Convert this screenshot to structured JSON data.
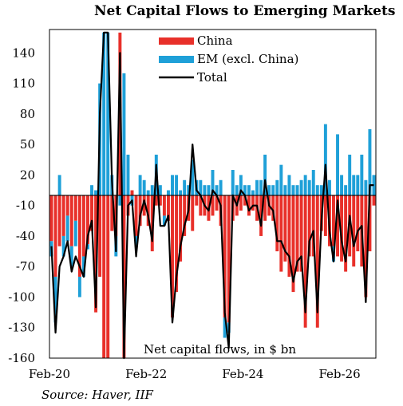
{
  "chart_data": {
    "type": "bar",
    "title": "Net Capital Flows to Emerging Markets",
    "ylabel": "",
    "xlabel": "",
    "annotation": "Net capital flows, in $ bn",
    "source": "Source: Haver, IIF",
    "ylim": [
      -160,
      163
    ],
    "y_ticks": [
      140,
      110,
      80,
      50,
      20,
      -10,
      -40,
      -70,
      -100,
      -130,
      -160
    ],
    "x_ticks": [
      "Feb-20",
      "Feb-22",
      "Feb-24",
      "Feb-26"
    ],
    "legend_position": "top-right",
    "grid": false,
    "stacked": true,
    "series": [
      {
        "name": "China",
        "color": "#e8302a",
        "values": [
          -45,
          -80,
          -50,
          -40,
          -20,
          -50,
          -25,
          -80,
          -60,
          -48,
          -35,
          -115,
          -80,
          -160,
          -160,
          -35,
          -40,
          160,
          -160,
          -20,
          5,
          -40,
          -30,
          -20,
          -30,
          -55,
          -10,
          -10,
          -20,
          -25,
          -120,
          -95,
          -65,
          -40,
          -25,
          -35,
          -10,
          -20,
          -20,
          -25,
          -20,
          -15,
          -30,
          -120,
          -125,
          -25,
          -20,
          -15,
          -10,
          -20,
          -15,
          -25,
          -40,
          -25,
          -20,
          -25,
          -55,
          -75,
          -65,
          -80,
          -95,
          -75,
          -75,
          -130,
          -60,
          -60,
          -130,
          -35,
          -40,
          -50,
          -50,
          -60,
          -65,
          -75,
          -60,
          -70,
          -55,
          -70,
          -100,
          -55,
          -10
        ]
      },
      {
        "name": "EM (excl. China)",
        "color": "#1fa0d8",
        "values": [
          -15,
          -45,
          20,
          -20,
          -25,
          -20,
          -25,
          -20,
          -20,
          -5,
          10,
          5,
          110,
          160,
          160,
          20,
          -20,
          -10,
          120,
          40,
          -10,
          -10,
          20,
          15,
          5,
          10,
          40,
          10,
          -10,
          5,
          20,
          20,
          5,
          15,
          10,
          35,
          15,
          15,
          10,
          10,
          25,
          10,
          15,
          -20,
          -10,
          25,
          10,
          20,
          10,
          10,
          5,
          15,
          15,
          40,
          10,
          10,
          15,
          30,
          10,
          20,
          10,
          10,
          15,
          20,
          15,
          25,
          10,
          10,
          70,
          15,
          -15,
          60,
          20,
          10,
          40,
          20,
          20,
          40,
          15,
          65,
          20
        ]
      },
      {
        "name": "Total",
        "color": "#000000",
        "values": [
          -50,
          -135,
          -70,
          -60,
          -45,
          -75,
          -60,
          -70,
          -80,
          -40,
          -25,
          -110,
          80,
          160,
          160,
          15,
          -55,
          140,
          -160,
          -10,
          -5,
          -60,
          -20,
          -5,
          -20,
          -45,
          30,
          -30,
          -30,
          -20,
          -125,
          -80,
          -50,
          -30,
          -15,
          50,
          5,
          0,
          -10,
          -15,
          5,
          0,
          -10,
          -115,
          -150,
          0,
          -10,
          5,
          0,
          -15,
          -10,
          -10,
          -30,
          15,
          -10,
          -15,
          -45,
          -45,
          -55,
          -60,
          -85,
          -65,
          -60,
          -115,
          -45,
          -35,
          -115,
          -25,
          30,
          -35,
          -65,
          -5,
          -45,
          -65,
          -20,
          -50,
          -35,
          -30,
          -105,
          10,
          10
        ]
      }
    ]
  },
  "footer": {
    "source": "Source: Haver, IIF"
  }
}
